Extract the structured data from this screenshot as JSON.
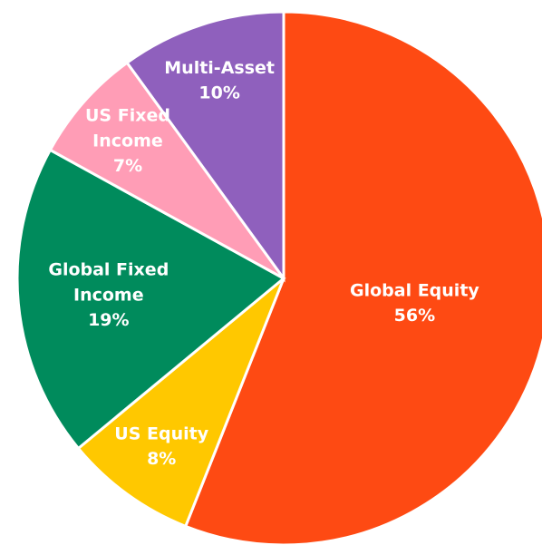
{
  "chart_data": {
    "type": "pie",
    "categories": [
      "Global Equity",
      "US Equity",
      "Global Fixed Income",
      "US Fixed Income",
      "Multi-Asset"
    ],
    "values": [
      56,
      8,
      19,
      7,
      10
    ],
    "value_labels": [
      "56%",
      "8%",
      "19%",
      "7%",
      "10%"
    ],
    "colors": [
      "#fe4a13",
      "#ffc800",
      "#008b5c",
      "#ff9db6",
      "#8f60bd"
    ]
  }
}
